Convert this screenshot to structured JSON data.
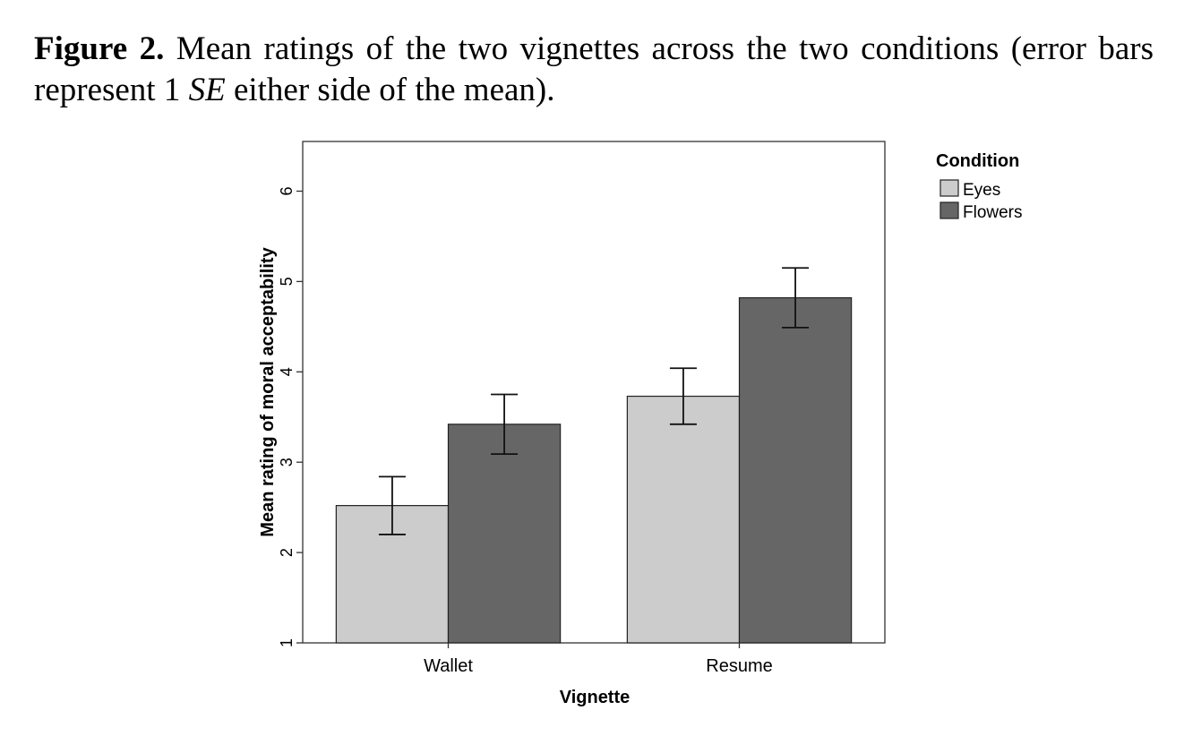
{
  "caption": {
    "label": "Figure 2.",
    "text_before": " Mean ratings of the two vignettes across the two conditions (error bars represent 1 ",
    "italic": "SE",
    "text_after": " either side of the mean)."
  },
  "colors": {
    "eyes": "#cccccc",
    "flowers": "#666666",
    "axis": "#333333",
    "bar_outline": "#222222"
  },
  "chart_data": {
    "type": "bar",
    "categories": [
      "Wallet",
      "Resume"
    ],
    "series": [
      {
        "name": "Eyes",
        "values": [
          2.52,
          3.73
        ],
        "se": [
          0.32,
          0.31
        ]
      },
      {
        "name": "Flowers",
        "values": [
          3.42,
          4.82
        ],
        "se": [
          0.33,
          0.33
        ]
      }
    ],
    "xlabel": "Vignette",
    "ylabel": "Mean rating of moral acceptability",
    "ylim": [
      1,
      6.55
    ],
    "yticks": [
      "1",
      "2",
      "3",
      "4",
      "5",
      "6"
    ],
    "legend_title": "Condition",
    "legend_position": "top-right outside",
    "grid": false
  }
}
